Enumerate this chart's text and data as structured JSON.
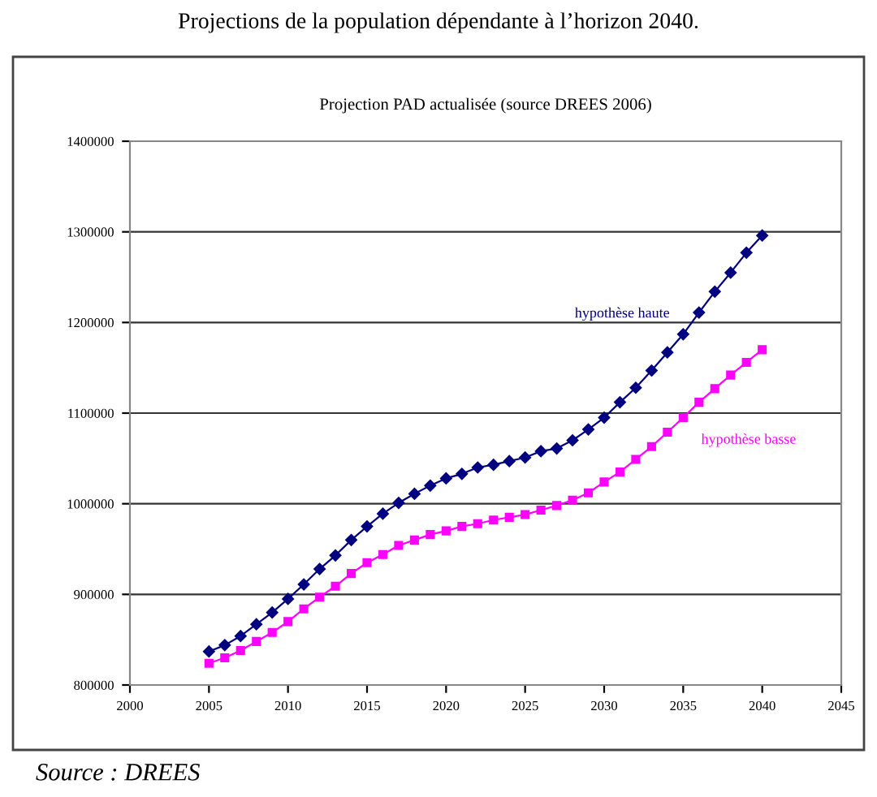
{
  "chart_data": {
    "type": "line",
    "title": "Projection PAD actualisée (source DREES 2006)",
    "subtitle": "Projections de la population dépendante à l’horizon 2040.",
    "x": [
      2005,
      2006,
      2007,
      2008,
      2009,
      2010,
      2011,
      2012,
      2013,
      2014,
      2015,
      2016,
      2017,
      2018,
      2019,
      2020,
      2021,
      2022,
      2023,
      2024,
      2025,
      2026,
      2027,
      2028,
      2029,
      2030,
      2031,
      2032,
      2033,
      2034,
      2035,
      2036,
      2037,
      2038,
      2039,
      2040
    ],
    "series": [
      {
        "name": "hypothèse haute",
        "color": "#000080",
        "marker": "diamond",
        "values": [
          837000,
          844000,
          854000,
          867000,
          880000,
          895000,
          911000,
          928000,
          943000,
          960000,
          975000,
          989000,
          1001000,
          1011000,
          1020000,
          1028000,
          1033000,
          1040000,
          1043000,
          1047000,
          1051000,
          1058000,
          1061000,
          1070000,
          1082000,
          1095000,
          1112000,
          1128000,
          1147000,
          1167000,
          1187000,
          1211000,
          1234000,
          1255000,
          1277000,
          1296000
        ]
      },
      {
        "name": "hypothèse basse",
        "color": "#ff00ff",
        "marker": "square",
        "values": [
          824000,
          830000,
          838000,
          848000,
          858000,
          870000,
          884000,
          897000,
          909000,
          923000,
          935000,
          944000,
          954000,
          960000,
          966000,
          970000,
          975000,
          978000,
          982000,
          985000,
          988000,
          993000,
          998000,
          1004000,
          1012000,
          1024000,
          1035000,
          1049000,
          1063000,
          1079000,
          1095000,
          1112000,
          1127000,
          1142000,
          1156000,
          1170000
        ]
      }
    ],
    "xlim": [
      2000,
      2045
    ],
    "xticks": [
      2000,
      2005,
      2010,
      2015,
      2020,
      2025,
      2030,
      2035,
      2040,
      2045
    ],
    "ylim": [
      800000,
      1400000
    ],
    "yticks": [
      800000,
      900000,
      1000000,
      1100000,
      1200000,
      1300000,
      1400000
    ],
    "grid": "y",
    "legend": false,
    "line_style": "solid",
    "annotations": [
      "Source : DREES"
    ]
  }
}
